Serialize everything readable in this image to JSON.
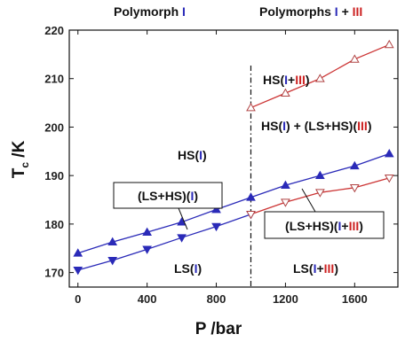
{
  "chart_data": {
    "type": "line",
    "xlabel": "P /bar",
    "ylabel_main": "T",
    "ylabel_sub": "c",
    "ylabel_unit": " /K",
    "xlim": [
      -50,
      1850
    ],
    "ylim": [
      167,
      220
    ],
    "xticks": [
      0,
      400,
      800,
      1200,
      1600
    ],
    "yticks": [
      170,
      180,
      190,
      200,
      210,
      220
    ],
    "phase_boundary_x": 1000,
    "headers": {
      "left": {
        "text": "Polymorph ",
        "roman": "I"
      },
      "right": {
        "text": "Polymorphs ",
        "roman1": "I",
        "plus": " + ",
        "roman2": "III"
      }
    },
    "series": [
      {
        "marker": "filled-triangle-up",
        "color": "#2a2ab8",
        "x": [
          0,
          200,
          400,
          600,
          800,
          1000,
          1200,
          1400,
          1600,
          1800
        ],
        "values": [
          174.0,
          176.3,
          178.3,
          180.4,
          183.0,
          185.5,
          188.0,
          190.0,
          192.0,
          194.5
        ]
      },
      {
        "marker": "filled-triangle-down",
        "color": "#2a2ab8",
        "x": [
          0,
          200,
          400,
          600,
          800,
          1000
        ],
        "values": [
          170.5,
          172.5,
          174.8,
          177.2,
          179.5,
          182.0
        ]
      },
      {
        "marker": "open-triangle-up",
        "color": "#cc3333",
        "x": [
          1000,
          1200,
          1400,
          1600,
          1800
        ],
        "values": [
          204.0,
          207.0,
          210.0,
          214.0,
          217.0
        ]
      },
      {
        "marker": "open-triangle-down",
        "color": "#cc3333",
        "x": [
          1000,
          1200,
          1400,
          1600,
          1800
        ],
        "values": [
          182.0,
          184.5,
          186.5,
          187.5,
          189.5
        ]
      }
    ],
    "annotations": {
      "hs_i": {
        "pre": "HS(",
        "roman": "I",
        "post": ")"
      },
      "ls_i": {
        "pre": "LS(",
        "roman": "I",
        "post": ")"
      },
      "ls_i_iii": {
        "pre": "LS(",
        "roman1": "I",
        "plus": "+",
        "roman2": "III",
        "post": ")"
      },
      "hs_i_iii": {
        "pre": "HS(",
        "roman1": "I",
        "plus": "+",
        "roman2": "III",
        "post": ")"
      },
      "hs_i_plus_lshs_iii": {
        "pre": "HS(",
        "roman1": "I",
        "mid": ") + (LS+HS)(",
        "roman2": "III",
        "post": ")"
      },
      "box_lshs_i": {
        "pre": "(LS+HS)(",
        "roman": "I",
        "post": ")"
      },
      "box_lshs_i_iii": {
        "pre": "(LS+HS)(",
        "roman1": "I",
        "plus": "+",
        "roman2": "III",
        "post": ")"
      }
    },
    "colors": {
      "roman_one": "#2a2ab8",
      "roman_three": "#cc2222",
      "axis": "#111111"
    }
  }
}
